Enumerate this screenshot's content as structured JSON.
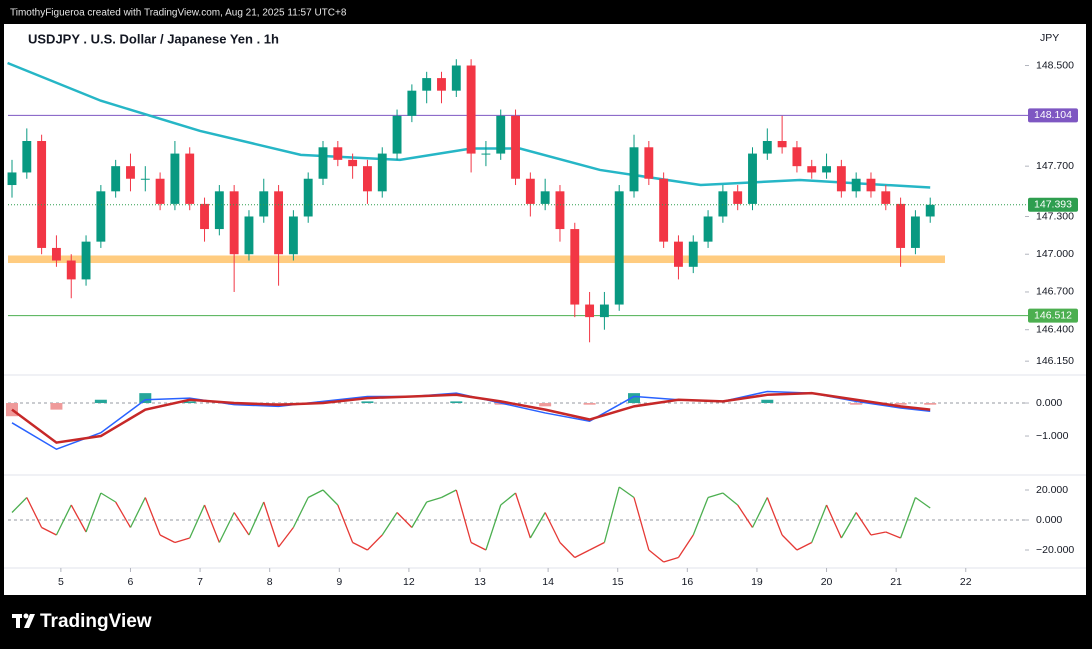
{
  "header": "TimothyFigueroa created with TradingView.com, Aug 21, 2025 11:57 UTC+8",
  "footer": "TradingView",
  "chart_data": [
    {
      "type": "candlestick",
      "title": "USDJPY . U.S. Dollar / Japanese Yen . 1h",
      "unit": "JPY",
      "up_color": "#089981",
      "down_color": "#f23645",
      "ylim": [
        146.04,
        148.83
      ],
      "yticks": [
        {
          "value": 148.5,
          "label": "148.500"
        },
        {
          "value": 147.7,
          "label": "147.700"
        },
        {
          "value": 147.3,
          "label": "147.300"
        },
        {
          "value": 147.0,
          "label": "147.000"
        },
        {
          "value": 146.7,
          "label": "146.700"
        },
        {
          "value": 146.4,
          "label": "146.400"
        },
        {
          "value": 146.15,
          "label": "146.150"
        }
      ],
      "ohlc": [
        [
          147.55,
          147.75,
          147.45,
          147.65
        ],
        [
          147.65,
          148.0,
          147.6,
          147.9
        ],
        [
          147.9,
          147.95,
          147.0,
          147.05
        ],
        [
          147.05,
          147.15,
          146.9,
          146.95
        ],
        [
          146.95,
          147.0,
          146.65,
          146.8
        ],
        [
          146.8,
          147.15,
          146.75,
          147.1
        ],
        [
          147.1,
          147.55,
          147.05,
          147.5
        ],
        [
          147.5,
          147.75,
          147.45,
          147.7
        ],
        [
          147.7,
          147.8,
          147.5,
          147.6
        ],
        [
          147.6,
          147.7,
          147.5,
          147.6
        ],
        [
          147.6,
          147.65,
          147.35,
          147.4
        ],
        [
          147.4,
          147.9,
          147.35,
          147.8
        ],
        [
          147.8,
          147.85,
          147.35,
          147.4
        ],
        [
          147.4,
          147.45,
          147.1,
          147.2
        ],
        [
          147.2,
          147.55,
          147.15,
          147.5
        ],
        [
          147.5,
          147.55,
          146.7,
          147.0
        ],
        [
          147.0,
          147.35,
          146.95,
          147.3
        ],
        [
          147.3,
          147.6,
          147.25,
          147.5
        ],
        [
          147.5,
          147.55,
          146.75,
          147.0
        ],
        [
          147.0,
          147.35,
          146.95,
          147.3
        ],
        [
          147.3,
          147.65,
          147.25,
          147.6
        ],
        [
          147.6,
          147.9,
          147.55,
          147.85
        ],
        [
          147.85,
          147.9,
          147.7,
          147.75
        ],
        [
          147.75,
          147.8,
          147.6,
          147.7
        ],
        [
          147.7,
          147.75,
          147.4,
          147.5
        ],
        [
          147.5,
          147.85,
          147.45,
          147.8
        ],
        [
          147.8,
          148.15,
          147.75,
          148.1
        ],
        [
          148.1,
          148.35,
          148.05,
          148.3
        ],
        [
          148.3,
          148.45,
          148.2,
          148.4
        ],
        [
          148.4,
          148.45,
          148.2,
          148.3
        ],
        [
          148.3,
          148.55,
          148.25,
          148.5
        ],
        [
          148.5,
          148.55,
          147.65,
          147.8
        ],
        [
          147.8,
          147.9,
          147.7,
          147.8
        ],
        [
          147.8,
          148.15,
          147.75,
          148.1
        ],
        [
          148.1,
          148.15,
          147.55,
          147.6
        ],
        [
          147.6,
          147.65,
          147.3,
          147.4
        ],
        [
          147.4,
          147.6,
          147.35,
          147.5
        ],
        [
          147.5,
          147.55,
          147.1,
          147.2
        ],
        [
          147.2,
          147.25,
          146.5,
          146.6
        ],
        [
          146.6,
          146.7,
          146.3,
          146.5
        ],
        [
          146.5,
          146.7,
          146.4,
          146.6
        ],
        [
          146.6,
          147.55,
          146.55,
          147.5
        ],
        [
          147.5,
          147.95,
          147.45,
          147.85
        ],
        [
          147.85,
          147.9,
          147.55,
          147.6
        ],
        [
          147.6,
          147.65,
          147.05,
          147.1
        ],
        [
          147.1,
          147.15,
          146.8,
          146.9
        ],
        [
          146.9,
          147.15,
          146.85,
          147.1
        ],
        [
          147.1,
          147.35,
          147.05,
          147.3
        ],
        [
          147.3,
          147.55,
          147.25,
          147.5
        ],
        [
          147.5,
          147.55,
          147.35,
          147.4
        ],
        [
          147.4,
          147.85,
          147.35,
          147.8
        ],
        [
          147.8,
          148.0,
          147.75,
          147.9
        ],
        [
          147.9,
          148.1,
          147.8,
          147.85
        ],
        [
          147.85,
          147.9,
          147.65,
          147.7
        ],
        [
          147.7,
          147.75,
          147.6,
          147.65
        ],
        [
          147.65,
          147.8,
          147.6,
          147.7
        ],
        [
          147.7,
          147.75,
          147.45,
          147.5
        ],
        [
          147.5,
          147.65,
          147.45,
          147.6
        ],
        [
          147.6,
          147.65,
          147.45,
          147.5
        ],
        [
          147.5,
          147.55,
          147.35,
          147.4
        ],
        [
          147.4,
          147.45,
          146.9,
          147.05
        ],
        [
          147.05,
          147.35,
          147.0,
          147.3
        ],
        [
          147.3,
          147.45,
          147.25,
          147.393
        ]
      ],
      "ma": {
        "color": "#26b6c6",
        "x": [
          -0.3,
          6,
          12.7,
          19.5,
          26.2,
          31,
          34.3,
          39.7,
          46.5,
          53.2,
          62
        ],
        "values": [
          148.52,
          148.22,
          147.98,
          147.79,
          147.75,
          147.84,
          147.84,
          147.67,
          147.55,
          147.59,
          147.53
        ]
      },
      "levels": [
        {
          "value": 148.104,
          "color": "#7e57c2"
        },
        {
          "value": 146.512,
          "color": "#4caf50"
        }
      ],
      "last_color": "#2e9e4f",
      "zone": [
        146.93,
        146.99
      ],
      "zone_color": "#ffcc80"
    },
    {
      "type": "macd",
      "ylim": [
        -2.03,
        0.85
      ],
      "yticks": [
        {
          "value": 0,
          "label": "0.000"
        },
        {
          "value": -1,
          "label": "−1.000"
        }
      ],
      "x": [
        0,
        3,
        6,
        9,
        12,
        15,
        18,
        21,
        24,
        27,
        30,
        33,
        36,
        39,
        42,
        45,
        48,
        51,
        54,
        57,
        60,
        62
      ],
      "series": [
        {
          "color": "#2962ff",
          "values": [
            -0.6,
            -1.4,
            -0.9,
            0.1,
            0.15,
            -0.05,
            -0.1,
            0.05,
            0.2,
            0.2,
            0.3,
            0.0,
            -0.3,
            -0.55,
            0.2,
            0.1,
            0.05,
            0.35,
            0.3,
            0.05,
            -0.15,
            -0.25
          ]
        },
        {
          "color": "#c62828",
          "values": [
            -0.2,
            -1.2,
            -1.0,
            -0.2,
            0.1,
            0.0,
            -0.05,
            0.0,
            0.15,
            0.2,
            0.25,
            0.05,
            -0.2,
            -0.5,
            -0.1,
            0.1,
            0.05,
            0.25,
            0.3,
            0.1,
            -0.1,
            -0.2
          ]
        }
      ],
      "histogram": [
        -0.4,
        -0.2,
        0.1,
        0.3,
        0.05,
        -0.05,
        -0.05,
        0.05,
        0.05,
        0.0,
        0.05,
        -0.05,
        -0.1,
        -0.05,
        0.3,
        0.0,
        0.0,
        0.1,
        0.0,
        -0.05,
        -0.05,
        -0.05
      ],
      "hist_up_color": "#26a69a",
      "hist_down_color": "#ef9a9a"
    },
    {
      "type": "oscillator",
      "ylim": [
        -32,
        28
      ],
      "yticks": [
        {
          "value": 20,
          "label": "20.000"
        },
        {
          "value": 0,
          "label": "0.000"
        },
        {
          "value": -20,
          "label": "−20.000"
        }
      ],
      "up_color": "#4caf50",
      "down_color": "#e53935",
      "values": [
        5,
        15,
        -5,
        -10,
        10,
        -8,
        18,
        12,
        -5,
        15,
        -10,
        -15,
        -12,
        10,
        -15,
        5,
        -10,
        12,
        -18,
        -5,
        15,
        20,
        10,
        -15,
        -20,
        -10,
        5,
        -5,
        12,
        15,
        20,
        -15,
        -20,
        10,
        18,
        -12,
        5,
        -15,
        -25,
        -20,
        -15,
        22,
        15,
        -20,
        -28,
        -25,
        -10,
        15,
        18,
        10,
        -5,
        15,
        -10,
        -20,
        -15,
        10,
        -12,
        5,
        -10,
        -8,
        -12,
        15,
        8
      ],
      "xlim": [
        -0.27,
        68.4
      ],
      "xticks": [
        {
          "value": 3.3,
          "label": "5"
        },
        {
          "value": 8.0,
          "label": "6"
        },
        {
          "value": 12.7,
          "label": "7"
        },
        {
          "value": 17.4,
          "label": "8"
        },
        {
          "value": 22.1,
          "label": "9"
        },
        {
          "value": 26.8,
          "label": "12"
        },
        {
          "value": 31.6,
          "label": "13"
        },
        {
          "value": 36.2,
          "label": "14"
        },
        {
          "value": 40.9,
          "label": "15"
        },
        {
          "value": 45.6,
          "label": "16"
        },
        {
          "value": 50.3,
          "label": "19"
        },
        {
          "value": 55.0,
          "label": "20"
        },
        {
          "value": 59.7,
          "label": "21"
        },
        {
          "value": 64.4,
          "label": "22"
        }
      ]
    }
  ]
}
